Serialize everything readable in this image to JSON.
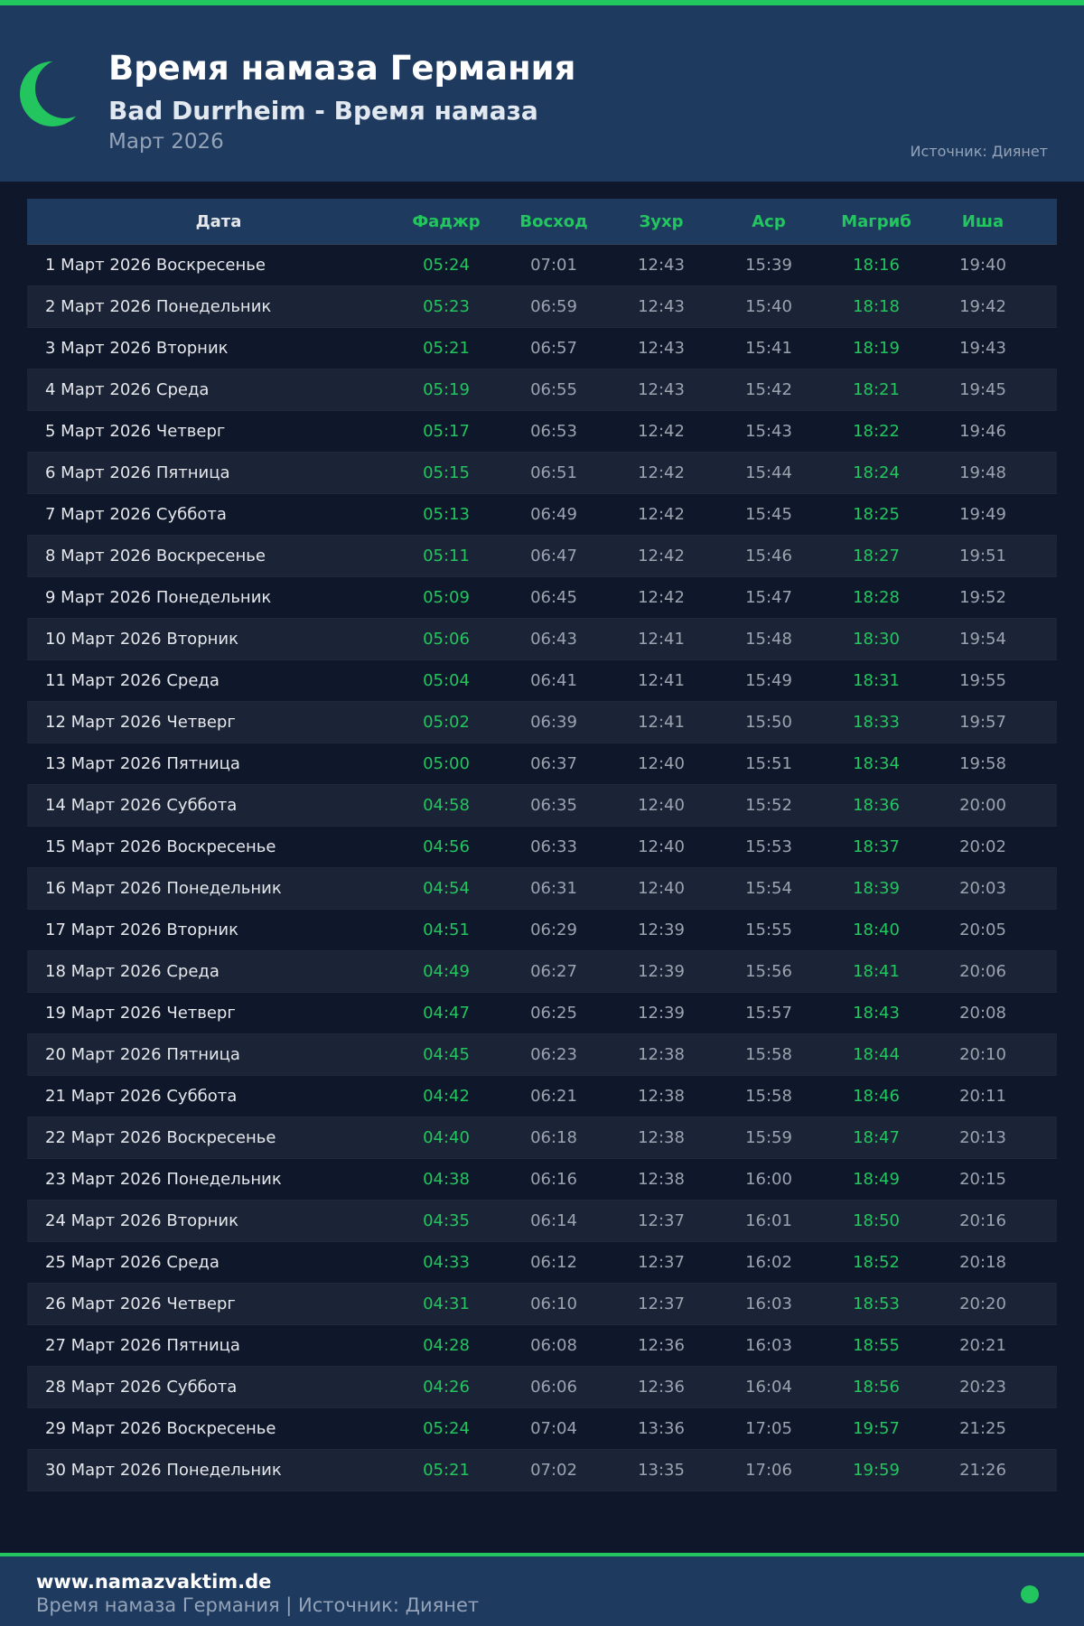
{
  "header": {
    "title": "Время намаза Германия",
    "subtitle": "Bad Durrheim - Время намаза",
    "month": "Март 2026",
    "source": "Источник: Диянет"
  },
  "colors": {
    "accent": "#22c55e",
    "header_bg": "#1e3a5f",
    "page_bg": "#0f172a"
  },
  "icons": {
    "logo": "crescent-moon-icon",
    "status": "green-dot-icon"
  },
  "table": {
    "columns": [
      "Дата",
      "Фаджр",
      "Восход",
      "Зухр",
      "Аср",
      "Магриб",
      "Иша"
    ],
    "rows": [
      [
        "1 Март 2026 Воскресенье",
        "05:24",
        "07:01",
        "12:43",
        "15:39",
        "18:16",
        "19:40"
      ],
      [
        "2 Март 2026 Понедельник",
        "05:23",
        "06:59",
        "12:43",
        "15:40",
        "18:18",
        "19:42"
      ],
      [
        "3 Март 2026 Вторник",
        "05:21",
        "06:57",
        "12:43",
        "15:41",
        "18:19",
        "19:43"
      ],
      [
        "4 Март 2026 Среда",
        "05:19",
        "06:55",
        "12:43",
        "15:42",
        "18:21",
        "19:45"
      ],
      [
        "5 Март 2026 Четверг",
        "05:17",
        "06:53",
        "12:42",
        "15:43",
        "18:22",
        "19:46"
      ],
      [
        "6 Март 2026 Пятница",
        "05:15",
        "06:51",
        "12:42",
        "15:44",
        "18:24",
        "19:48"
      ],
      [
        "7 Март 2026 Суббота",
        "05:13",
        "06:49",
        "12:42",
        "15:45",
        "18:25",
        "19:49"
      ],
      [
        "8 Март 2026 Воскресенье",
        "05:11",
        "06:47",
        "12:42",
        "15:46",
        "18:27",
        "19:51"
      ],
      [
        "9 Март 2026 Понедельник",
        "05:09",
        "06:45",
        "12:42",
        "15:47",
        "18:28",
        "19:52"
      ],
      [
        "10 Март 2026 Вторник",
        "05:06",
        "06:43",
        "12:41",
        "15:48",
        "18:30",
        "19:54"
      ],
      [
        "11 Март 2026 Среда",
        "05:04",
        "06:41",
        "12:41",
        "15:49",
        "18:31",
        "19:55"
      ],
      [
        "12 Март 2026 Четверг",
        "05:02",
        "06:39",
        "12:41",
        "15:50",
        "18:33",
        "19:57"
      ],
      [
        "13 Март 2026 Пятница",
        "05:00",
        "06:37",
        "12:40",
        "15:51",
        "18:34",
        "19:58"
      ],
      [
        "14 Март 2026 Суббота",
        "04:58",
        "06:35",
        "12:40",
        "15:52",
        "18:36",
        "20:00"
      ],
      [
        "15 Март 2026 Воскресенье",
        "04:56",
        "06:33",
        "12:40",
        "15:53",
        "18:37",
        "20:02"
      ],
      [
        "16 Март 2026 Понедельник",
        "04:54",
        "06:31",
        "12:40",
        "15:54",
        "18:39",
        "20:03"
      ],
      [
        "17 Март 2026 Вторник",
        "04:51",
        "06:29",
        "12:39",
        "15:55",
        "18:40",
        "20:05"
      ],
      [
        "18 Март 2026 Среда",
        "04:49",
        "06:27",
        "12:39",
        "15:56",
        "18:41",
        "20:06"
      ],
      [
        "19 Март 2026 Четверг",
        "04:47",
        "06:25",
        "12:39",
        "15:57",
        "18:43",
        "20:08"
      ],
      [
        "20 Март 2026 Пятница",
        "04:45",
        "06:23",
        "12:38",
        "15:58",
        "18:44",
        "20:10"
      ],
      [
        "21 Март 2026 Суббота",
        "04:42",
        "06:21",
        "12:38",
        "15:58",
        "18:46",
        "20:11"
      ],
      [
        "22 Март 2026 Воскресенье",
        "04:40",
        "06:18",
        "12:38",
        "15:59",
        "18:47",
        "20:13"
      ],
      [
        "23 Март 2026 Понедельник",
        "04:38",
        "06:16",
        "12:38",
        "16:00",
        "18:49",
        "20:15"
      ],
      [
        "24 Март 2026 Вторник",
        "04:35",
        "06:14",
        "12:37",
        "16:01",
        "18:50",
        "20:16"
      ],
      [
        "25 Март 2026 Среда",
        "04:33",
        "06:12",
        "12:37",
        "16:02",
        "18:52",
        "20:18"
      ],
      [
        "26 Март 2026 Четверг",
        "04:31",
        "06:10",
        "12:37",
        "16:03",
        "18:53",
        "20:20"
      ],
      [
        "27 Март 2026 Пятница",
        "04:28",
        "06:08",
        "12:36",
        "16:03",
        "18:55",
        "20:21"
      ],
      [
        "28 Март 2026 Суббота",
        "04:26",
        "06:06",
        "12:36",
        "16:04",
        "18:56",
        "20:23"
      ],
      [
        "29 Март 2026 Воскресенье",
        "05:24",
        "07:04",
        "13:36",
        "17:05",
        "19:57",
        "21:25"
      ],
      [
        "30 Март 2026 Понедельник",
        "05:21",
        "07:02",
        "13:35",
        "17:06",
        "19:59",
        "21:26"
      ]
    ]
  },
  "footer": {
    "site": "www.namazvaktim.de",
    "text": "Время намаза Германия | Источник: Диянет"
  }
}
